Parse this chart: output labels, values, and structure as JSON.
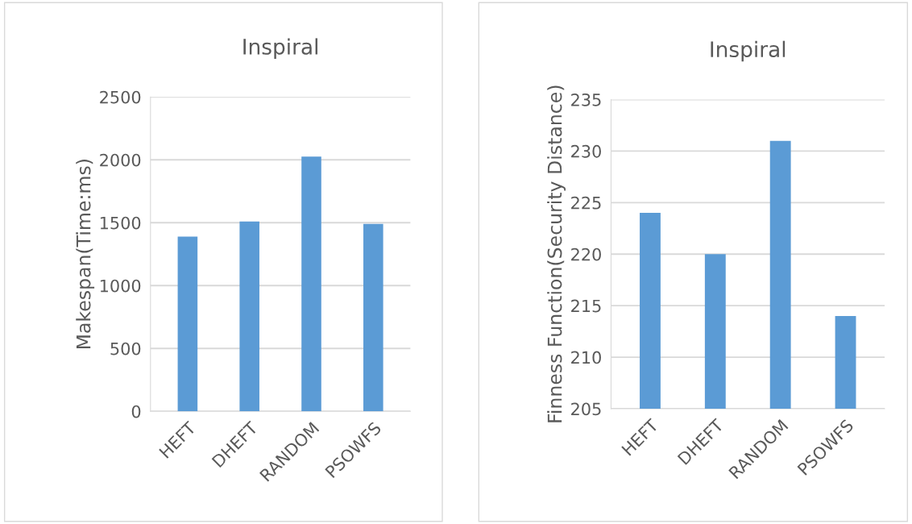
{
  "chart_data": [
    {
      "type": "bar",
      "title": "Inspiral",
      "ylabel": "Makespan(Time:ms)",
      "categories": [
        "HEFT",
        "DHEFT",
        "RANDOM",
        "PSOWFS"
      ],
      "values": [
        1390,
        1510,
        2025,
        1490
      ],
      "color": "#5b9bd5",
      "ylim": [
        0,
        2500
      ],
      "yticks": [
        0,
        500,
        1000,
        1500,
        2000,
        2500
      ],
      "grid": "y"
    },
    {
      "type": "bar",
      "title": "Inspiral",
      "ylabel": "Finness Function(Security Distance)",
      "categories": [
        "HEFT",
        "DHEFT",
        "RANDOM",
        "PSOWFS"
      ],
      "values": [
        224,
        220,
        231,
        214
      ],
      "color": "#5b9bd5",
      "ylim": [
        205,
        235
      ],
      "yticks": [
        205,
        210,
        215,
        220,
        225,
        230,
        235
      ],
      "grid": "y"
    }
  ]
}
